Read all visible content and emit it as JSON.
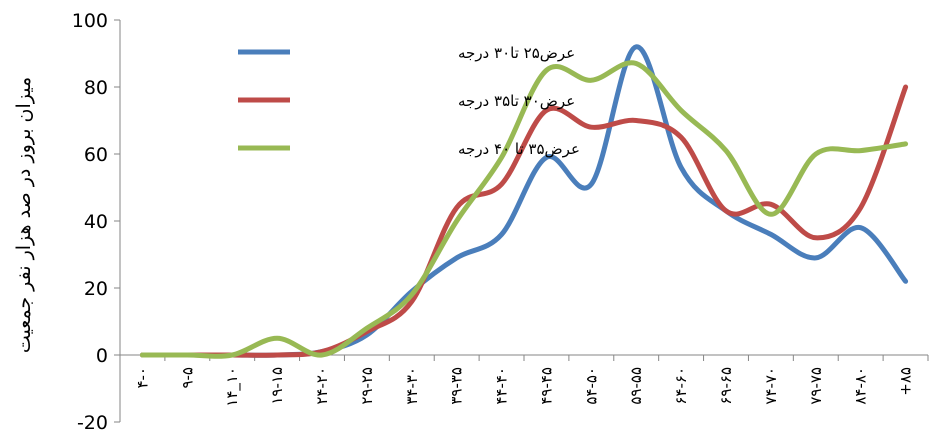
{
  "chart_data": {
    "type": "line",
    "title": "",
    "xlabel": "",
    "ylabel": "میزان بروز در صد هزار نفر جمعیت",
    "ylim": [
      -20,
      100
    ],
    "yticks": [
      -20,
      0,
      20,
      40,
      60,
      80,
      100
    ],
    "grid": false,
    "legend_position": "top-center",
    "categories": [
      "۴-۰",
      "۹-۵",
      "۱۴_۱۰",
      "۱۹-۱۵",
      "۲۴-۲۰",
      "۲۹-۲۵",
      "۳۴-۳۰",
      "۳۹-۳۵",
      "۴۴-۴۰",
      "۴۹-۴۵",
      "۵۴-۵۰",
      "۵۹-۵۵",
      "۶۴-۶۰",
      "۶۹-۶۵",
      "۷۴-۷۰",
      "۷۹-۷۵",
      "۸۴-۸۰",
      "+۸۵"
    ],
    "series": [
      {
        "name": "عرض۲۵ تا۳۰ درجه",
        "color": "#4A7EBB",
        "values": [
          0,
          0,
          0,
          0,
          1,
          6,
          19,
          29,
          36,
          59,
          51,
          92,
          56,
          43,
          36,
          29,
          38,
          22
        ]
      },
      {
        "name": "عرض۳۰ تا۳۵ درجه",
        "color": "#BE4B48",
        "values": [
          0,
          0,
          0,
          0,
          1,
          7,
          16,
          44,
          51,
          73,
          68,
          70,
          65,
          43,
          45,
          35,
          44,
          80
        ]
      },
      {
        "name": "عرض۳۵ تا ۴۰ درجه",
        "color": "#98B954",
        "values": [
          0,
          0,
          0,
          5,
          0,
          8,
          18,
          40,
          59,
          85,
          82,
          87,
          73,
          61,
          42,
          60,
          61,
          63
        ]
      }
    ]
  }
}
